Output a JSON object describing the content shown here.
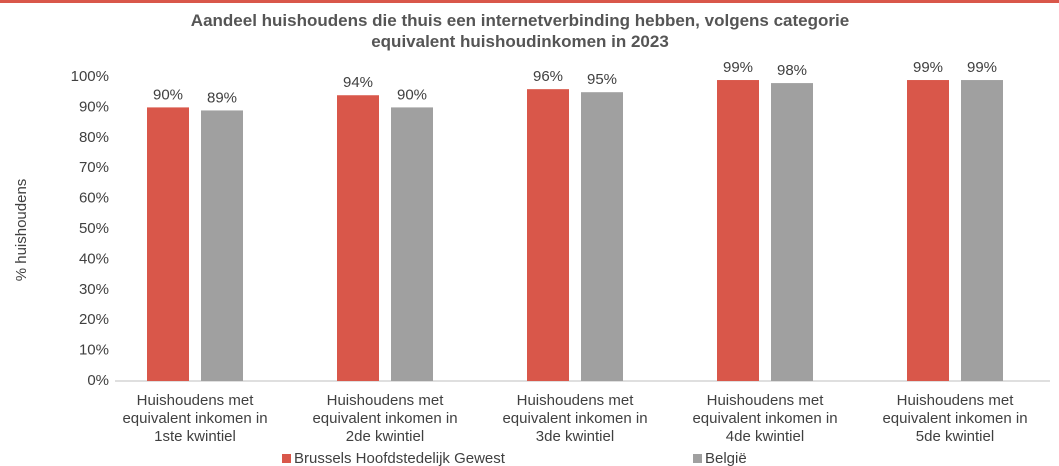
{
  "chart_data": {
    "type": "bar",
    "title": "Aandeel huishoudens die thuis een internetverbinding hebben, volgens categorie equivalent huishoudinkomen in 2023",
    "y_label": "% huishoudens",
    "categories": [
      "Huishoudens met equivalent inkomen in 1ste kwintiel",
      "Huishoudens met equivalent inkomen in 2de kwintiel",
      "Huishoudens met equivalent inkomen in 3de kwintiel",
      "Huishoudens met equivalent inkomen in 4de kwintiel",
      "Huishoudens met equivalent inkomen in 5de kwintiel"
    ],
    "series": [
      {
        "name": "Brussels Hoofdstedelijk Gewest",
        "color": "#d9574a",
        "values": [
          90,
          94,
          96,
          99,
          99
        ],
        "value_labels": [
          "90%",
          "94%",
          "96%",
          "99%",
          "99%"
        ]
      },
      {
        "name": "België",
        "color": "#a0a0a0",
        "values": [
          89,
          90,
          95,
          98,
          99
        ],
        "value_labels": [
          "89%",
          "90%",
          "95%",
          "98%",
          "99%"
        ]
      }
    ],
    "ylim": [
      0,
      100
    ],
    "yticks": [
      {
        "value": 0,
        "label": "0%"
      },
      {
        "value": 10,
        "label": "10%"
      },
      {
        "value": 20,
        "label": "20%"
      },
      {
        "value": 30,
        "label": "30%"
      },
      {
        "value": 40,
        "label": "40%"
      },
      {
        "value": 50,
        "label": "50%"
      },
      {
        "value": 60,
        "label": "60%"
      },
      {
        "value": 70,
        "label": "70%"
      },
      {
        "value": 80,
        "label": "80%"
      },
      {
        "value": 90,
        "label": "90%"
      },
      {
        "value": 100,
        "label": "100%"
      }
    ],
    "grid": false,
    "legend": "bottom"
  }
}
